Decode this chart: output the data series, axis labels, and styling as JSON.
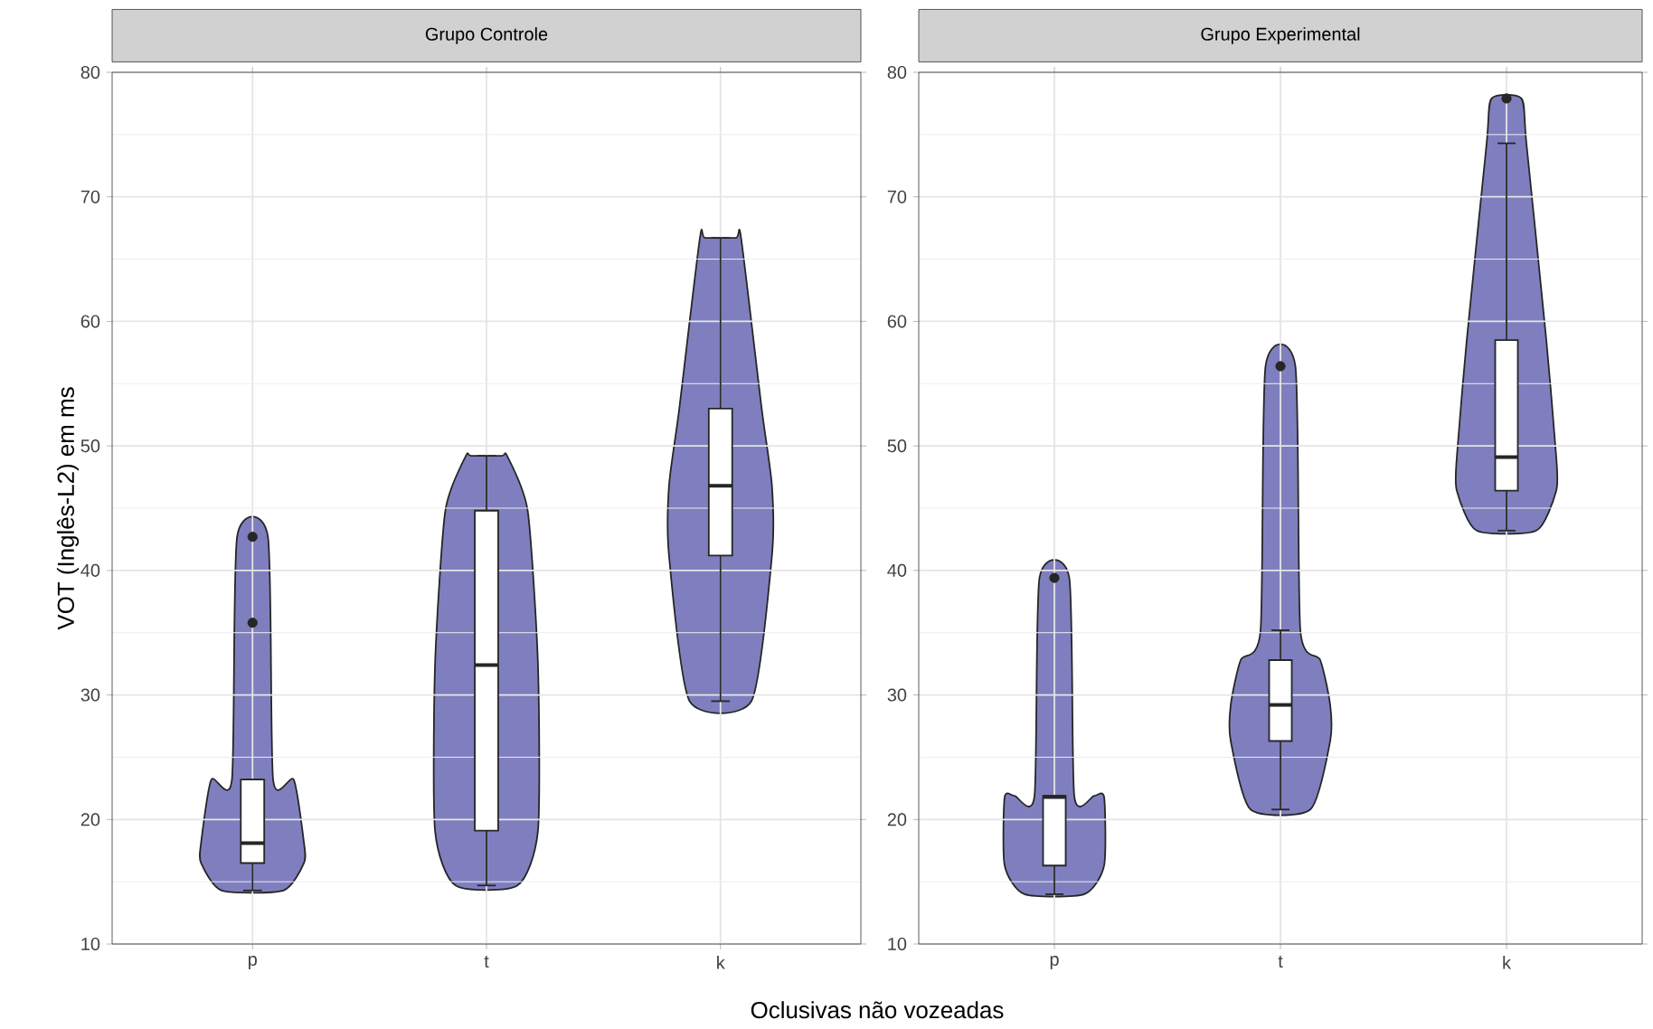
{
  "chart_data": [
    {
      "type": "box",
      "title": "Grupo Controle",
      "xlabel": "Oclusivas não vozeadas",
      "ylabel": "VOT (Inglês-L2) em ms",
      "categories": [
        "p",
        "t",
        "k"
      ],
      "ylim": [
        10,
        80
      ],
      "yticks": [
        10,
        20,
        30,
        40,
        50,
        60,
        70,
        80
      ],
      "grid": true,
      "series": [
        {
          "color": "#ffffff",
          "boxes": [
            {
              "low": 14.3,
              "q1": 16.5,
              "median": 18.1,
              "q3": 23.2,
              "high": 23.2,
              "outliers": [
                35.8,
                42.7
              ]
            },
            {
              "low": 14.7,
              "q1": 19.1,
              "median": 32.4,
              "q3": 44.8,
              "high": 49.2
            },
            {
              "low": 29.5,
              "q1": 41.2,
              "median": 46.8,
              "q3": 53.0,
              "high": 66.7
            }
          ]
        }
      ]
    },
    {
      "type": "box",
      "title": "Grupo Experimental",
      "categories": [
        "p",
        "t",
        "k"
      ],
      "ylim": [
        10,
        80
      ],
      "yticks": [
        10,
        20,
        30,
        40,
        50,
        60,
        70,
        80
      ],
      "grid": true,
      "series": [
        {
          "color": "#ffffff",
          "boxes": [
            {
              "low": 14.0,
              "q1": 16.3,
              "median": 21.8,
              "q3": 21.9,
              "high": 21.9,
              "outliers": [
                39.4
              ]
            },
            {
              "low": 20.8,
              "q1": 26.3,
              "median": 29.2,
              "q3": 32.8,
              "high": 35.2,
              "outliers": [
                56.4
              ]
            },
            {
              "low": 43.2,
              "q1": 46.4,
              "median": 49.1,
              "q3": 58.5,
              "high": 74.3,
              "outliers": [
                77.9
              ]
            }
          ]
        }
      ]
    }
  ]
}
